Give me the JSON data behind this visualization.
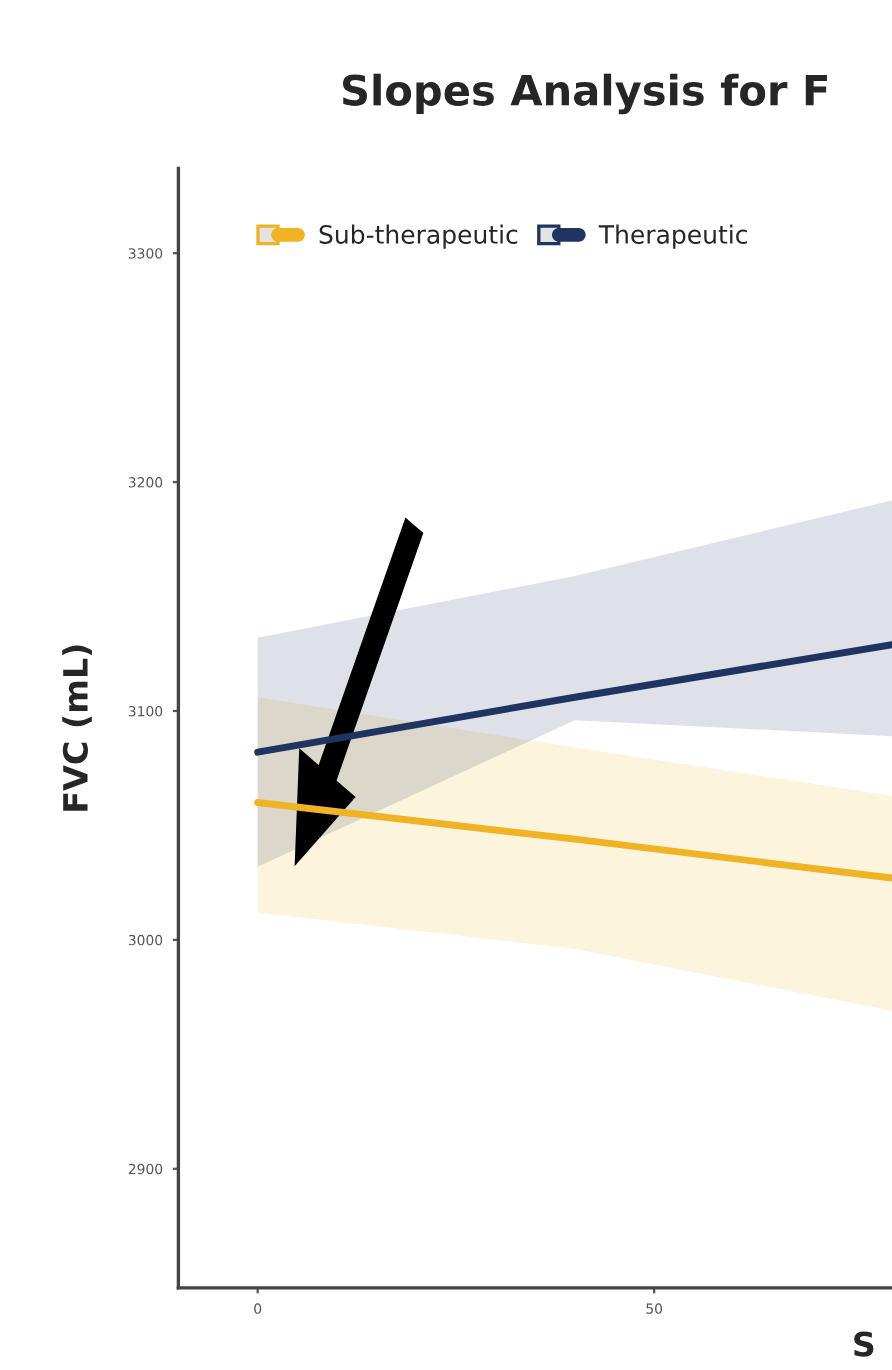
{
  "chart_data": {
    "type": "line",
    "title": "Slopes Analysis for F",
    "xlabel": "S",
    "ylabel": "FVC (mL)",
    "series": [
      {
        "name": "Sub-therapeutic",
        "color": "#f0b323",
        "x": [
          0,
          40,
          80
        ],
        "values": [
          3060,
          3044,
          3027
        ],
        "lower": [
          3012,
          2996,
          2969
        ],
        "upper": [
          3106,
          3084,
          3063
        ]
      },
      {
        "name": "Therapeutic",
        "color": "#1f3461",
        "x": [
          0,
          40,
          80
        ],
        "values": [
          3082,
          3106,
          3129
        ],
        "lower": [
          3032,
          3096,
          3089
        ],
        "upper": [
          3132,
          3159,
          3192
        ]
      }
    ],
    "xlim": [
      -10,
      80
    ],
    "xticks": [
      0,
      50
    ],
    "ylim": [
      2848,
      3337
    ],
    "yticks": [
      2900,
      3000,
      3100,
      3200,
      3300
    ],
    "grid": false,
    "legend": "top left",
    "line_style": "solid",
    "marker": "none"
  }
}
